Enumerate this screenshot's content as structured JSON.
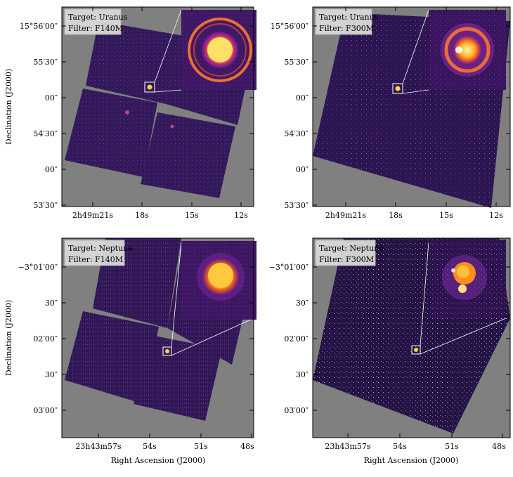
{
  "panels": [
    {
      "target_label": "Target: Uranus",
      "filter_label": "Filter: F140M",
      "y_ticks": [
        "15°56′00″",
        "55′30″",
        "00″",
        "54′30″",
        "00″",
        "53′30″"
      ],
      "x_ticks": [
        "2h49m21s",
        "18s",
        "15s",
        "12s"
      ],
      "x_ticks_parts": [
        [
          "2",
          "h",
          "49",
          "m",
          "21",
          "s"
        ],
        [
          "18",
          "s"
        ],
        [
          "15",
          "s"
        ],
        [
          "12",
          "s"
        ]
      ]
    },
    {
      "target_label": "Target: Uranus",
      "filter_label": "Filter: F300M",
      "y_ticks": [
        "15°56′00″",
        "55′30″",
        "00″",
        "54′30″",
        "00″",
        "53′30″"
      ],
      "x_ticks": [
        "2h49m21s",
        "18s",
        "15s",
        "12s"
      ]
    },
    {
      "target_label": "Target: Neptune",
      "filter_label": "Filter: F140M",
      "y_ticks": [
        "−3°01′00″",
        "30″",
        "02′00″",
        "30″",
        "03′00″"
      ],
      "x_ticks": [
        "23h43m57s",
        "54s",
        "51s",
        "48s"
      ]
    },
    {
      "target_label": "Target: Neptune",
      "filter_label": "Filter: F300M",
      "y_ticks": [
        "−3°01′00″",
        "30″",
        "02′00″",
        "30″",
        "03′00″"
      ],
      "x_ticks": [
        "23h43m57s",
        "54s",
        "51s",
        "48s"
      ]
    }
  ],
  "axes": {
    "ylabel": "Declination (J2000)",
    "xlabel": "Right Ascension (J2000)"
  },
  "colors": {
    "background_gray": "#808080",
    "mosaic_purple": "#3a1a5e",
    "planet_core": "#ffe066",
    "planet_glow": "#ff8c1a",
    "inset_bg": "#5a1a8c"
  }
}
